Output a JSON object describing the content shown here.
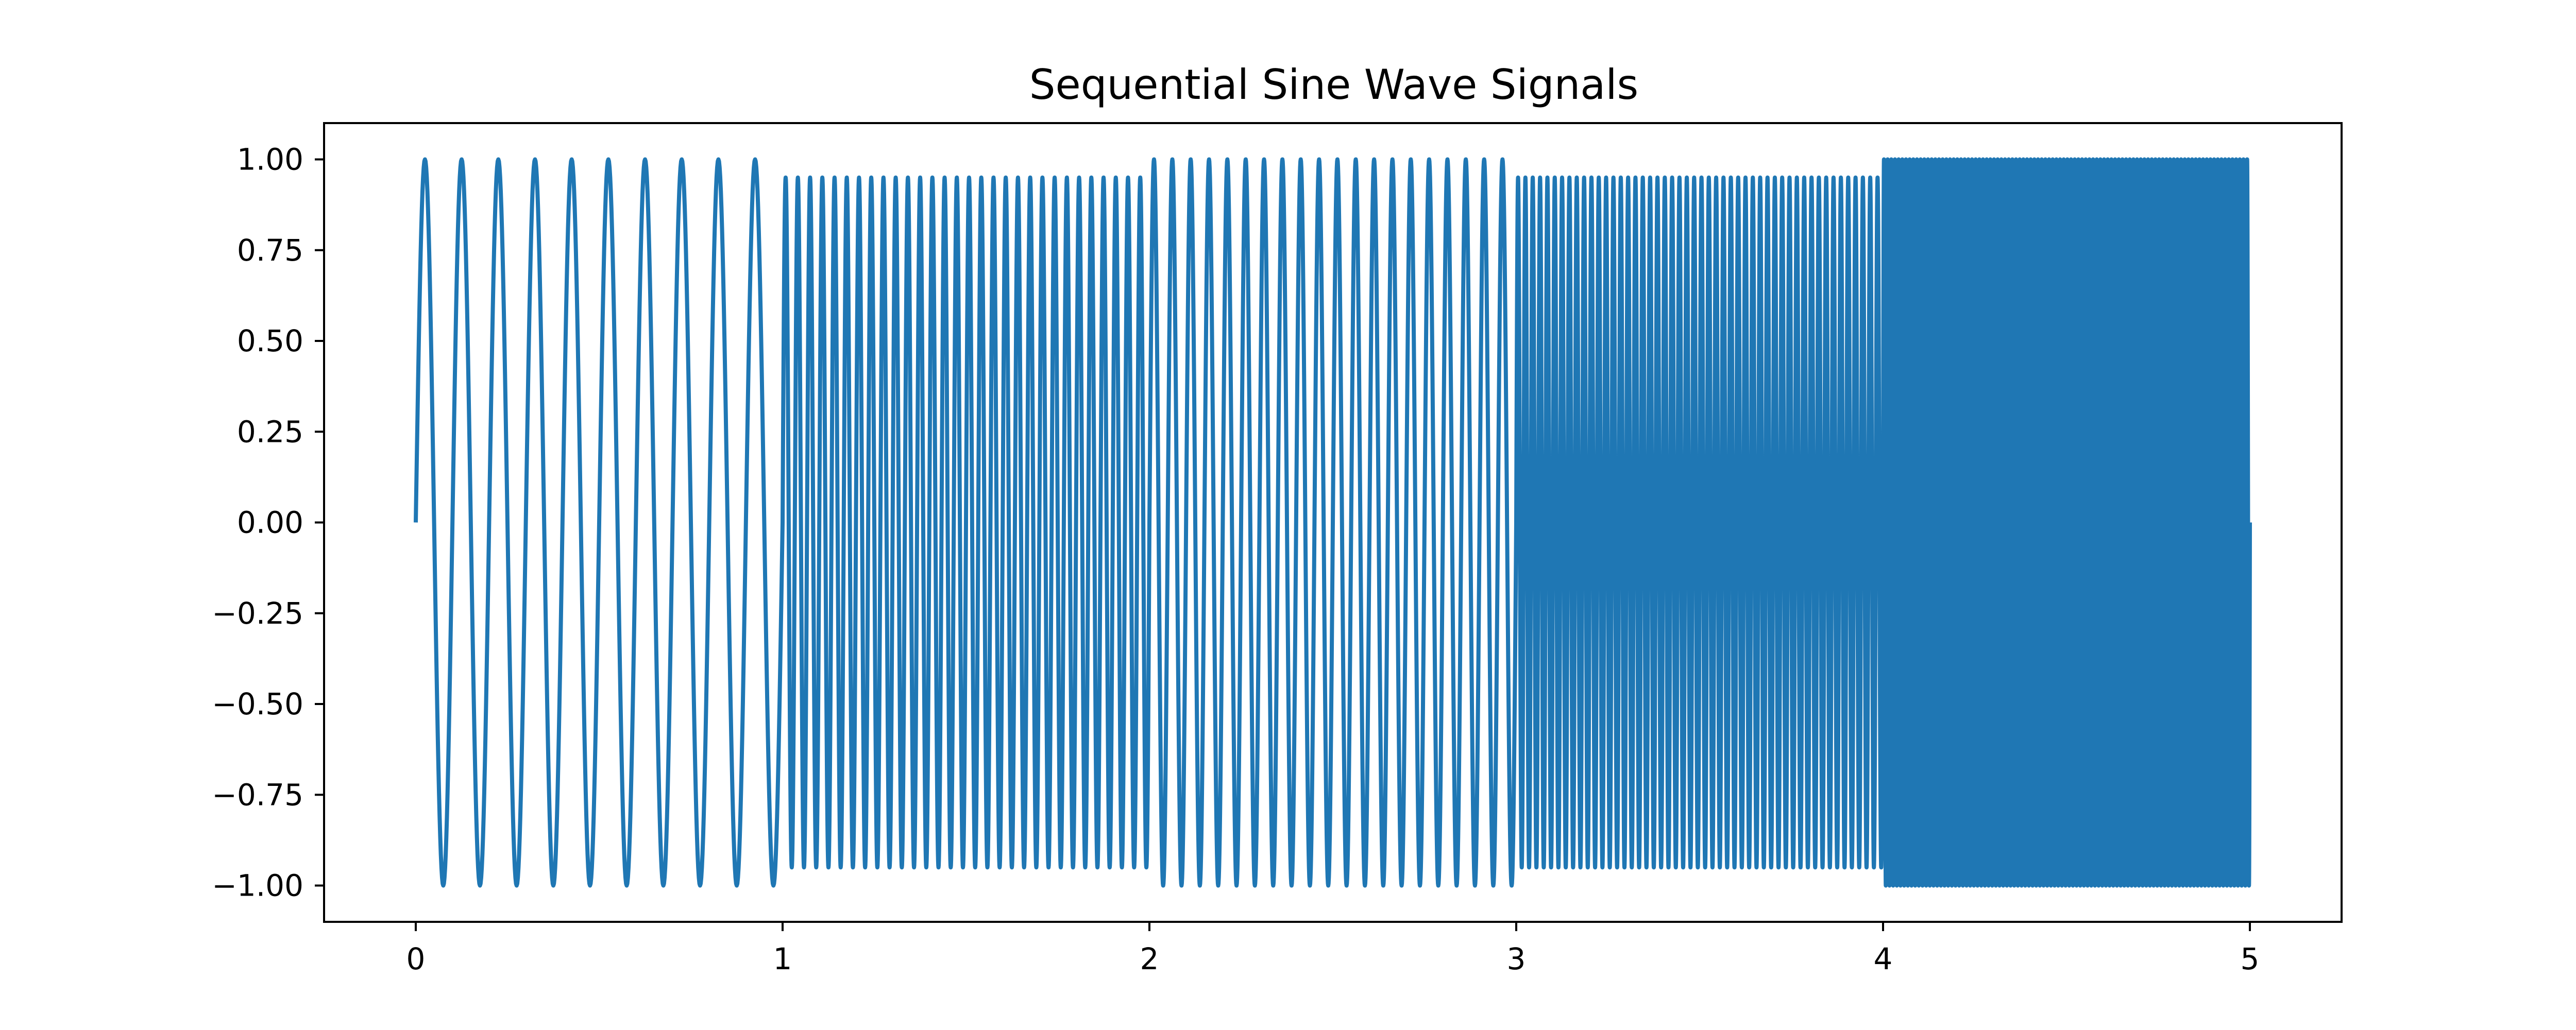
{
  "chart_data": {
    "type": "line",
    "title": "Sequential Sine Wave Signals",
    "xlabel": "",
    "ylabel": "",
    "xlim": [
      -0.25,
      5.25
    ],
    "ylim": [
      -1.1,
      1.1
    ],
    "grid": false,
    "legend": "none",
    "line_color": "#1f77b4",
    "xticks": [
      0,
      1,
      2,
      3,
      4,
      5
    ],
    "xtick_labels": [
      "0",
      "1",
      "2",
      "3",
      "4",
      "5"
    ],
    "yticks": [
      1.0,
      0.75,
      0.5,
      0.25,
      0.0,
      -0.25,
      -0.5,
      -0.75,
      -1.0
    ],
    "ytick_labels": [
      "1.00",
      "0.75",
      "0.50",
      "0.25",
      "0.00",
      "−0.25",
      "−0.50",
      "−0.75",
      "−1.00"
    ],
    "series": [
      {
        "segments": [
          {
            "x_start": 0,
            "x_end": 1,
            "frequency": 10,
            "amplitude": 1.0
          },
          {
            "x_start": 1,
            "x_end": 2,
            "frequency": 30,
            "amplitude": 0.95
          },
          {
            "x_start": 2,
            "x_end": 3,
            "frequency": 20,
            "amplitude": 1.0
          },
          {
            "x_start": 3,
            "x_end": 4,
            "frequency": 50,
            "amplitude": 0.95
          },
          {
            "x_start": 4,
            "x_end": 5,
            "frequency": 100,
            "amplitude": 1.0
          }
        ]
      }
    ]
  }
}
